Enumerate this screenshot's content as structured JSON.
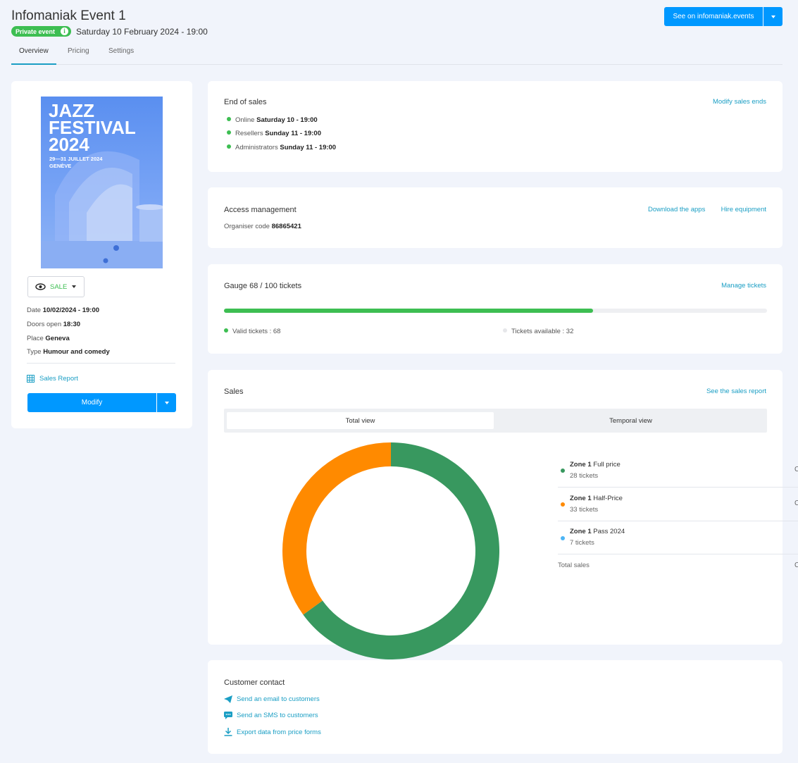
{
  "header": {
    "title": "Infomaniak Event 1",
    "badge": "Private event",
    "badge_info": "i",
    "datetime": "Saturday 10 February 2024 - 19:00",
    "see_button": "See on infomaniak.events"
  },
  "tabs": [
    {
      "label": "Overview",
      "active": true
    },
    {
      "label": "Pricing",
      "active": false
    },
    {
      "label": "Settings",
      "active": false
    }
  ],
  "poster": {
    "line1": "JAZZ",
    "line2": "FESTIVAL",
    "line3": "2024",
    "dates": "29—31 JUILLET 2024",
    "city": "GENÈVE"
  },
  "event": {
    "status": "SALE",
    "date_label": "Date",
    "date_value": "10/02/2024 - 19:00",
    "doors_label": "Doors open",
    "doors_value": "18:30",
    "place_label": "Place",
    "place_value": "Geneva",
    "type_label": "Type",
    "type_value": "Humour and comedy",
    "sales_report": "Sales Report",
    "modify": "Modify"
  },
  "end_of_sales": {
    "title": "End of sales",
    "link": "Modify sales ends",
    "items": [
      {
        "label": "Online",
        "value": "Saturday 10 - 19:00"
      },
      {
        "label": "Resellers",
        "value": "Sunday 11 - 19:00"
      },
      {
        "label": "Administrators",
        "value": "Sunday 11 - 19:00"
      }
    ]
  },
  "access": {
    "title": "Access management",
    "link_apps": "Download the apps",
    "link_equipment": "Hire equipment",
    "code_label": "Organiser code",
    "code_value": "86865421"
  },
  "gauge": {
    "title": "Gauge 68 / 100 tickets",
    "link": "Manage tickets",
    "fill_fraction": 0.68,
    "valid": "Valid tickets : 68",
    "available": "Tickets available : 32"
  },
  "sales": {
    "title": "Sales",
    "link": "See the sales report",
    "view_total": "Total view",
    "view_temporal": "Temporal view",
    "zones": [
      {
        "zone": "Zone 1",
        "price": "Full price",
        "tickets": "28 tickets",
        "count": 28,
        "color": "#38985f",
        "cut": "C"
      },
      {
        "zone": "Zone 1",
        "price": "Half-Price",
        "tickets": "33 tickets",
        "count": 33,
        "color": "#ff8a00",
        "cut": "C"
      },
      {
        "zone": "Zone 1",
        "price": "Pass 2024",
        "tickets": "7 tickets",
        "count": 7,
        "color": "#4db5f5",
        "cut": ""
      }
    ],
    "total_label": "Total sales",
    "total_cut": "C"
  },
  "chart_data": {
    "type": "pie",
    "style": "donut",
    "categories": [
      "Full price",
      "Half-Price"
    ],
    "values": [
      65,
      35
    ],
    "colors": [
      "#38985f",
      "#ff8a00"
    ]
  },
  "contact": {
    "title": "Customer contact",
    "email": "Send an email to customers",
    "sms": "Send an SMS to customers",
    "export": "Export data from price forms"
  },
  "colors": {
    "accent": "#1a9ec4",
    "button": "#0098ff",
    "success": "#3dbe52",
    "background": "#f1f4fb"
  }
}
